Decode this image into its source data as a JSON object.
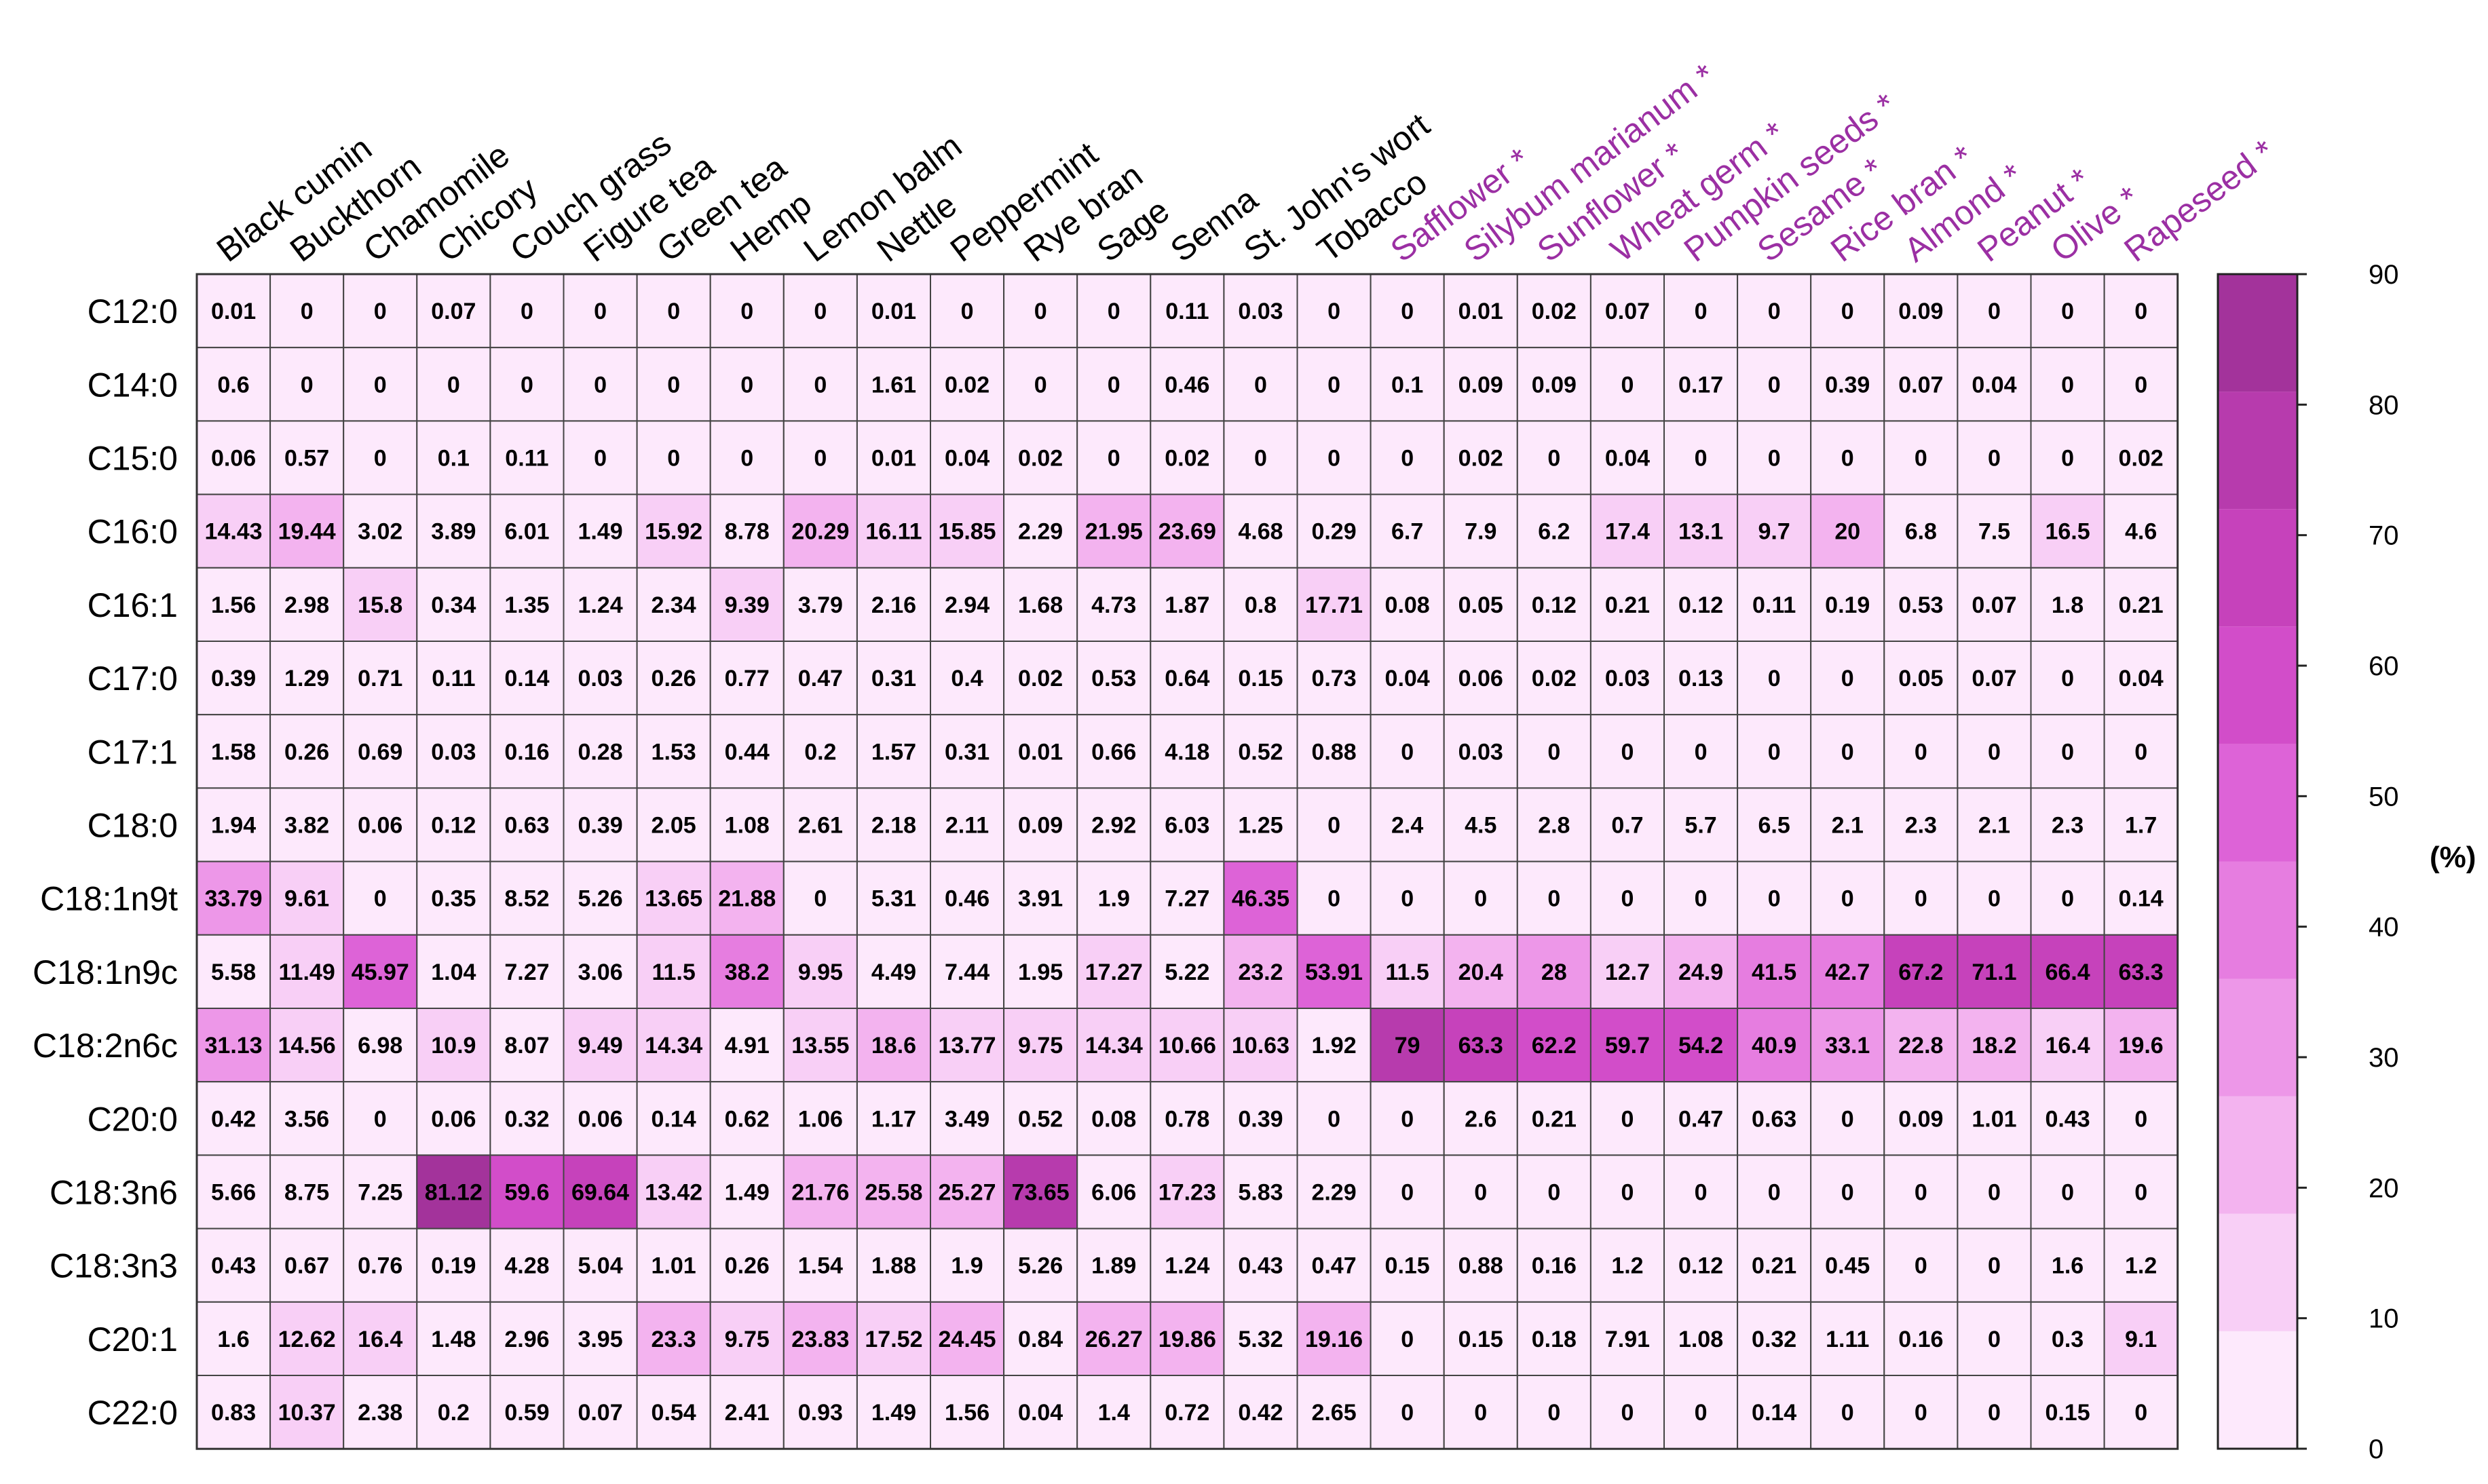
{
  "chart_data": {
    "type": "heatmap",
    "title": "",
    "xlabel": "",
    "ylabel": "",
    "columns": [
      "Black cumin",
      "Buckthorn",
      "Chamomile",
      "Chicory",
      "Couch grass",
      "Figure tea",
      "Green tea",
      "Hemp",
      "Lemon balm",
      "Nettle",
      "Peppermint",
      "Rye bran",
      "Sage",
      "Senna",
      "St. John's wort",
      "Tobacco",
      "Safflower *",
      "Silybum marianum *",
      "Sunflower *",
      "Wheat germ *",
      "Pumpkin seeds *",
      "Sesame *",
      "Rice bran *",
      "Almond *",
      "Peanut *",
      "Olive *",
      "Rapeseed *"
    ],
    "column_colors": [
      "#000000",
      "#000000",
      "#000000",
      "#000000",
      "#000000",
      "#000000",
      "#000000",
      "#000000",
      "#000000",
      "#000000",
      "#000000",
      "#000000",
      "#000000",
      "#000000",
      "#000000",
      "#000000",
      "#9b2fa3",
      "#9b2fa3",
      "#9b2fa3",
      "#9b2fa3",
      "#9b2fa3",
      "#9b2fa3",
      "#9b2fa3",
      "#9b2fa3",
      "#9b2fa3",
      "#9b2fa3",
      "#9b2fa3"
    ],
    "rows": [
      "C12:0",
      "C14:0",
      "C15:0",
      "C16:0",
      "C16:1",
      "C17:0",
      "C17:1",
      "C18:0",
      "C18:1n9t",
      "C18:1n9c",
      "C18:2n6c",
      "C20:0",
      "C18:3n6",
      "C18:3n3",
      "C20:1",
      "C22:0"
    ],
    "values": [
      [
        "0.01",
        "0",
        "0",
        "0.07",
        "0",
        "0",
        "0",
        "0",
        "0",
        "0.01",
        "0",
        "0",
        "0",
        "0.11",
        "0.03",
        "0",
        "0",
        "0.01",
        "0.02",
        "0.07",
        "0",
        "0",
        "0",
        "0.09",
        "0",
        "0",
        "0"
      ],
      [
        "0.6",
        "0",
        "0",
        "0",
        "0",
        "0",
        "0",
        "0",
        "0",
        "1.61",
        "0.02",
        "0",
        "0",
        "0.46",
        "0",
        "0",
        "0.1",
        "0.09",
        "0.09",
        "0",
        "0.17",
        "0",
        "0.39",
        "0.07",
        "0.04",
        "0",
        "0"
      ],
      [
        "0.06",
        "0.57",
        "0",
        "0.1",
        "0.11",
        "0",
        "0",
        "0",
        "0",
        "0.01",
        "0.04",
        "0.02",
        "0",
        "0.02",
        "0",
        "0",
        "0",
        "0.02",
        "0",
        "0.04",
        "0",
        "0",
        "0",
        "0",
        "0",
        "0",
        "0.02"
      ],
      [
        "14.43",
        "19.44",
        "3.02",
        "3.89",
        "6.01",
        "1.49",
        "15.92",
        "8.78",
        "20.29",
        "16.11",
        "15.85",
        "2.29",
        "21.95",
        "23.69",
        "4.68",
        "0.29",
        "6.7",
        "7.9",
        "6.2",
        "17.4",
        "13.1",
        "9.7",
        "20",
        "6.8",
        "7.5",
        "16.5",
        "4.6"
      ],
      [
        "1.56",
        "2.98",
        "15.8",
        "0.34",
        "1.35",
        "1.24",
        "2.34",
        "9.39",
        "3.79",
        "2.16",
        "2.94",
        "1.68",
        "4.73",
        "1.87",
        "0.8",
        "17.71",
        "0.08",
        "0.05",
        "0.12",
        "0.21",
        "0.12",
        "0.11",
        "0.19",
        "0.53",
        "0.07",
        "1.8",
        "0.21"
      ],
      [
        "0.39",
        "1.29",
        "0.71",
        "0.11",
        "0.14",
        "0.03",
        "0.26",
        "0.77",
        "0.47",
        "0.31",
        "0.4",
        "0.02",
        "0.53",
        "0.64",
        "0.15",
        "0.73",
        "0.04",
        "0.06",
        "0.02",
        "0.03",
        "0.13",
        "0",
        "0",
        "0.05",
        "0.07",
        "0",
        "0.04"
      ],
      [
        "1.58",
        "0.26",
        "0.69",
        "0.03",
        "0.16",
        "0.28",
        "1.53",
        "0.44",
        "0.2",
        "1.57",
        "0.31",
        "0.01",
        "0.66",
        "4.18",
        "0.52",
        "0.88",
        "0",
        "0.03",
        "0",
        "0",
        "0",
        "0",
        "0",
        "0",
        "0",
        "0",
        "0"
      ],
      [
        "1.94",
        "3.82",
        "0.06",
        "0.12",
        "0.63",
        "0.39",
        "2.05",
        "1.08",
        "2.61",
        "2.18",
        "2.11",
        "0.09",
        "2.92",
        "6.03",
        "1.25",
        "0",
        "2.4",
        "4.5",
        "2.8",
        "0.7",
        "5.7",
        "6.5",
        "2.1",
        "2.3",
        "2.1",
        "2.3",
        "1.7"
      ],
      [
        "33.79",
        "9.61",
        "0",
        "0.35",
        "8.52",
        "5.26",
        "13.65",
        "21.88",
        "0",
        "5.31",
        "0.46",
        "3.91",
        "1.9",
        "7.27",
        "46.35",
        "0",
        "0",
        "0",
        "0",
        "0",
        "0",
        "0",
        "0",
        "0",
        "0",
        "0",
        "0.14"
      ],
      [
        "5.58",
        "11.49",
        "45.97",
        "1.04",
        "7.27",
        "3.06",
        "11.5",
        "38.2",
        "9.95",
        "4.49",
        "7.44",
        "1.95",
        "17.27",
        "5.22",
        "23.2",
        "53.91",
        "11.5",
        "20.4",
        "28",
        "12.7",
        "24.9",
        "41.5",
        "42.7",
        "67.2",
        "71.1",
        "66.4",
        "63.3"
      ],
      [
        "31.13",
        "14.56",
        "6.98",
        "10.9",
        "8.07",
        "9.49",
        "14.34",
        "4.91",
        "13.55",
        "18.6",
        "13.77",
        "9.75",
        "14.34",
        "10.66",
        "10.63",
        "1.92",
        "79",
        "63.3",
        "62.2",
        "59.7",
        "54.2",
        "40.9",
        "33.1",
        "22.8",
        "18.2",
        "16.4",
        "19.6"
      ],
      [
        "0.42",
        "3.56",
        "0",
        "0.06",
        "0.32",
        "0.06",
        "0.14",
        "0.62",
        "1.06",
        "1.17",
        "3.49",
        "0.52",
        "0.08",
        "0.78",
        "0.39",
        "0",
        "0",
        "2.6",
        "0.21",
        "0",
        "0.47",
        "0.63",
        "0",
        "0.09",
        "1.01",
        "0.43",
        "0"
      ],
      [
        "5.66",
        "8.75",
        "7.25",
        "81.12",
        "59.6",
        "69.64",
        "13.42",
        "1.49",
        "21.76",
        "25.58",
        "25.27",
        "73.65",
        "6.06",
        "17.23",
        "5.83",
        "2.29",
        "0",
        "0",
        "0",
        "0",
        "0",
        "0",
        "0",
        "0",
        "0",
        "0",
        "0"
      ],
      [
        "0.43",
        "0.67",
        "0.76",
        "0.19",
        "4.28",
        "5.04",
        "1.01",
        "0.26",
        "1.54",
        "1.88",
        "1.9",
        "5.26",
        "1.89",
        "1.24",
        "0.43",
        "0.47",
        "0.15",
        "0.88",
        "0.16",
        "1.2",
        "0.12",
        "0.21",
        "0.45",
        "0",
        "0",
        "1.6",
        "1.2"
      ],
      [
        "1.6",
        "12.62",
        "16.4",
        "1.48",
        "2.96",
        "3.95",
        "23.3",
        "9.75",
        "23.83",
        "17.52",
        "24.45",
        "0.84",
        "26.27",
        "19.86",
        "5.32",
        "19.16",
        "0",
        "0.15",
        "0.18",
        "7.91",
        "1.08",
        "0.32",
        "1.11",
        "0.16",
        "0",
        "0.3",
        "9.1"
      ],
      [
        "0.83",
        "10.37",
        "2.38",
        "0.2",
        "0.59",
        "0.07",
        "0.54",
        "2.41",
        "0.93",
        "1.49",
        "1.56",
        "0.04",
        "1.4",
        "0.72",
        "0.42",
        "2.65",
        "0",
        "0",
        "0",
        "0",
        "0",
        "0.14",
        "0",
        "0",
        "0",
        "0.15",
        "0"
      ]
    ],
    "colorbar": {
      "label": "(%)",
      "range": [
        0,
        90
      ],
      "ticks": [
        "0",
        "10",
        "20",
        "30",
        "40",
        "50",
        "60",
        "70",
        "80",
        "90"
      ],
      "colors": [
        "#fde9fc",
        "#f8cff6",
        "#f3b3ef",
        "#ed97e8",
        "#e67de0",
        "#dd63d7",
        "#d24dc9",
        "#c642bb",
        "#b73bad",
        "#a3339b"
      ]
    },
    "grid": true,
    "legend_position": "right"
  }
}
